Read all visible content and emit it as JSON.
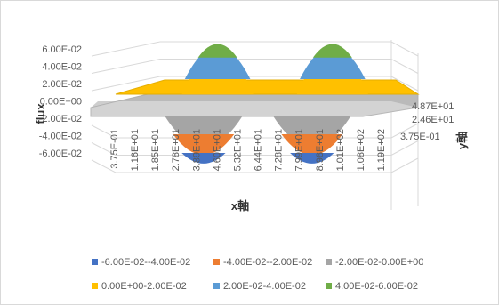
{
  "chart_data": {
    "type": "surface",
    "title": "",
    "zlabel": "flux",
    "xlabel": "x軸",
    "ylabel": "y軸",
    "z_ticks": [
      "6.00E-02",
      "4.00E-02",
      "2.00E-02",
      "0.00E+00",
      "-2.00E-02",
      "-4.00E-02",
      "-6.00E-02"
    ],
    "x_ticks": [
      "3.75E-01",
      "1.16E+01",
      "1.85E+01",
      "2.78E+01",
      "3.89E+01",
      "4.60E+01",
      "5.32E+01",
      "6.44E+01",
      "7.28E+01",
      "7.99E+01",
      "8.98E+01",
      "1.01E+02",
      "1.08E+02",
      "1.19E+02"
    ],
    "y_ticks": [
      "4.87E+01",
      "2.46E+01",
      "3.75E-01"
    ],
    "zlim": [
      -0.06,
      0.06
    ],
    "grid": true,
    "legend_position": "bottom",
    "bands": [
      {
        "name": "-6.00E-02--4.00E-02",
        "color": "#4472C4"
      },
      {
        "name": "-4.00E-02--2.00E-02",
        "color": "#ED7D31"
      },
      {
        "name": "-2.00E-02-0.00E+00",
        "color": "#A5A5A5"
      },
      {
        "name": "0.00E+00-2.00E-02",
        "color": "#FFC000"
      },
      {
        "name": "2.00E-02-4.00E-02",
        "color": "#5B9BD5"
      },
      {
        "name": "4.00E-02-6.00E-02",
        "color": "#70AD47"
      }
    ],
    "peaks": [
      {
        "x": 46.0,
        "z": 0.055
      },
      {
        "x": 89.8,
        "z": 0.055
      }
    ],
    "troughs": [
      {
        "x": 46.0,
        "z": -0.055
      },
      {
        "x": 89.8,
        "z": -0.055
      }
    ]
  }
}
